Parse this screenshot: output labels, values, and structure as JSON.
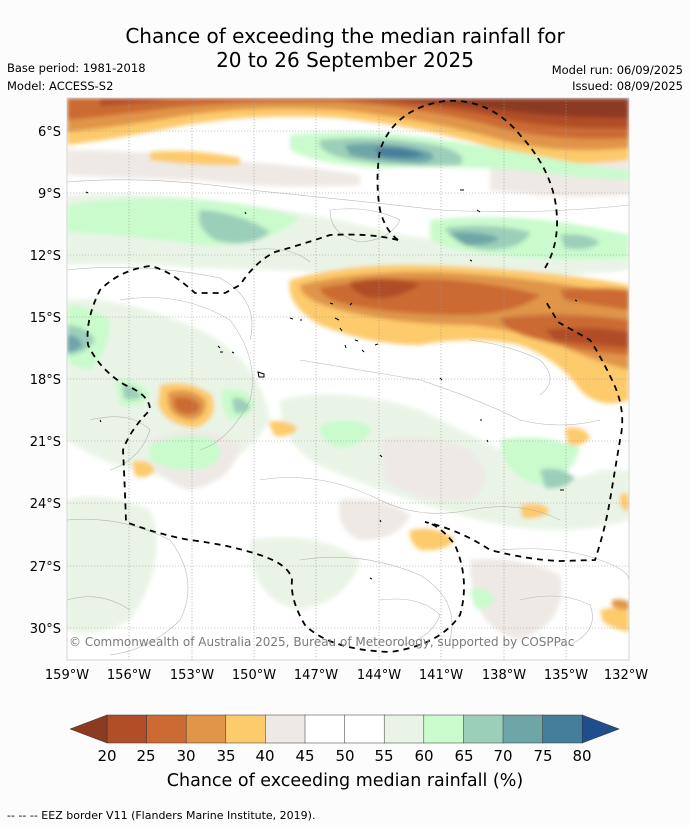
{
  "header": {
    "title_line1": "Chance of exceeding the median rainfall for",
    "title_line2": "20 to 26 September 2025",
    "base_period": "Base period: 1981-2018",
    "model": "Model: ACCESS-S2",
    "model_run": "Model run: 06/09/2025",
    "issued": "Issued: 08/09/2025"
  },
  "map": {
    "lat_labels": [
      "6°S",
      "9°S",
      "12°S",
      "15°S",
      "18°S",
      "21°S",
      "24°S",
      "27°S",
      "30°S"
    ],
    "lon_labels": [
      "159°W",
      "156°W",
      "153°W",
      "150°W",
      "147°W",
      "144°W",
      "141°W",
      "138°W",
      "135°W",
      "132°W"
    ],
    "copyright": "© Commonwealth of Australia 2025, Bureau of Meteorology, supported by COSPPac",
    "eez_style": "dashed black line"
  },
  "colorbar": {
    "title": "Chance of exceeding median rainfall (%)",
    "ticks": [
      "20",
      "25",
      "30",
      "35",
      "40",
      "45",
      "50",
      "55",
      "60",
      "65",
      "70",
      "75",
      "80"
    ],
    "colors": [
      "#8c3a20",
      "#b14e28",
      "#cb6a33",
      "#e09548",
      "#fdca6c",
      "#eee9e5",
      "#ffffff",
      "#ffffff",
      "#e9f4e6",
      "#c9fbcc",
      "#9ccfb9",
      "#6ea5a7",
      "#447e9a",
      "#1e4e8c"
    ]
  },
  "footer": {
    "legend_text": "--  --  -- EEZ border V11 (Flanders Marine Institute, 2019)."
  }
}
